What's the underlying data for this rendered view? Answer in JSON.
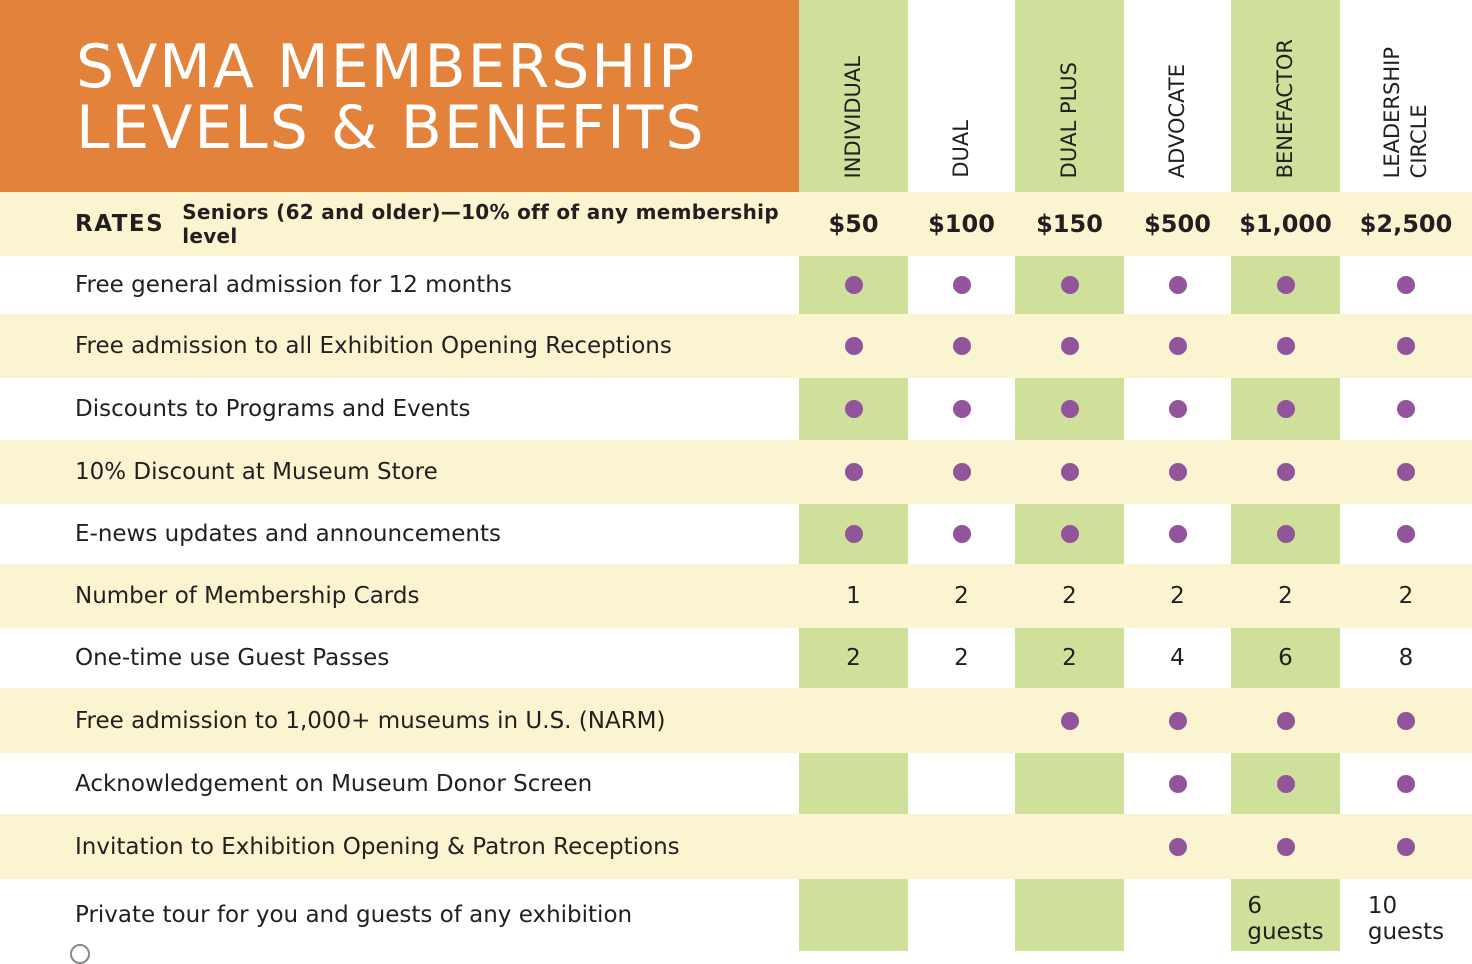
{
  "title": {
    "line1": "SVMA MEMBERSHIP",
    "line2": "LEVELS & BENEFITS"
  },
  "colors": {
    "title_bg": "#e3823b",
    "column_green": "#cfe09a",
    "row_cream": "#faf5d0",
    "dot_purple": "#92559c"
  },
  "levels": [
    {
      "lines": [
        "INDIVIDUAL"
      ],
      "rate": "$50"
    },
    {
      "lines": [
        "DUAL"
      ],
      "rate": "$100"
    },
    {
      "lines": [
        "DUAL PLUS"
      ],
      "rate": "$150"
    },
    {
      "lines": [
        "ADVOCATE"
      ],
      "rate": "$500"
    },
    {
      "lines": [
        "BENEFACTOR"
      ],
      "rate": "$1,000"
    },
    {
      "lines": [
        "LEADERSHIP",
        "CIRCLE"
      ],
      "rate": "$2,500"
    }
  ],
  "rates": {
    "label": "RATES",
    "note": "Seniors (62 and older)—10% off of any membership level"
  },
  "benefits": [
    {
      "label": "Free general admission for 12 months",
      "values": [
        "dot",
        "dot",
        "dot",
        "dot",
        "dot",
        "dot"
      ]
    },
    {
      "label": "Free admission to all Exhibition Opening Receptions",
      "values": [
        "dot",
        "dot",
        "dot",
        "dot",
        "dot",
        "dot"
      ]
    },
    {
      "label": "Discounts to Programs and Events",
      "values": [
        "dot",
        "dot",
        "dot",
        "dot",
        "dot",
        "dot"
      ]
    },
    {
      "label": "10% Discount at Museum Store",
      "values": [
        "dot",
        "dot",
        "dot",
        "dot",
        "dot",
        "dot"
      ]
    },
    {
      "label": "E-news updates and announcements",
      "values": [
        "dot",
        "dot",
        "dot",
        "dot",
        "dot",
        "dot"
      ]
    },
    {
      "label": "Number of Membership Cards",
      "values": [
        "1",
        "2",
        "2",
        "2",
        "2",
        "2"
      ]
    },
    {
      "label": "One-time use Guest Passes",
      "values": [
        "2",
        "2",
        "2",
        "4",
        "6",
        "8"
      ]
    },
    {
      "label": "Free admission to 1,000+ museums in U.S. (NARM)",
      "values": [
        "",
        "",
        "dot",
        "dot",
        "dot",
        "dot"
      ]
    },
    {
      "label": "Acknowledgement on Museum Donor Screen",
      "values": [
        "",
        "",
        "",
        "dot",
        "dot",
        "dot"
      ]
    },
    {
      "label": "Invitation to Exhibition Opening & Patron Receptions",
      "values": [
        "",
        "",
        "",
        "dot",
        "dot",
        "dot"
      ]
    },
    {
      "label": "Private tour for you and guests of any exhibition",
      "values": [
        "",
        "",
        "",
        "",
        "6 guests",
        "10 guests"
      ]
    }
  ]
}
